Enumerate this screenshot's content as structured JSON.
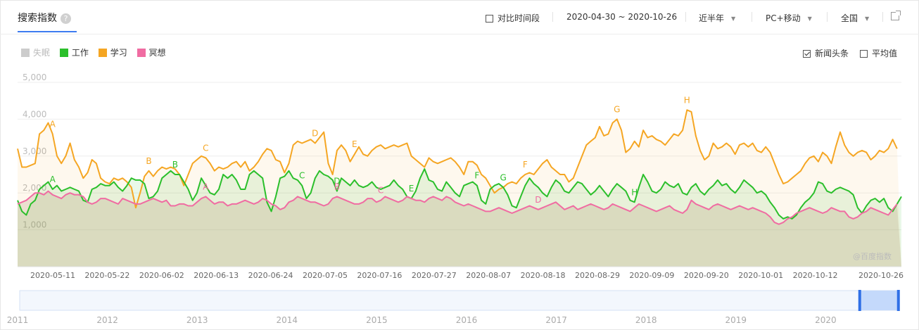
{
  "header": {
    "title": "搜索指数",
    "help_icon": "?",
    "compare_label": "对比时间段",
    "date_range": "2020-04-30 ~ 2020-10-26",
    "period": "近半年",
    "device": "PC+移动",
    "region": "全国",
    "share_icon": "share-icon"
  },
  "options": {
    "news_label": "新闻头条",
    "news_checked": true,
    "avg_label": "平均值",
    "avg_checked": false
  },
  "watermark": "@百度指数",
  "chart_data": {
    "type": "area",
    "y_ticks": [
      "5,000",
      "4,000",
      "3,000",
      "2,000",
      "1,000"
    ],
    "ylim": [
      0,
      5000
    ],
    "x_start": "2020-04-30",
    "x_end": "2020-10-26",
    "x_tick_labels": [
      "2020-05-11",
      "2020-05-22",
      "2020-06-02",
      "2020-06-13",
      "2020-06-24",
      "2020-07-05",
      "2020-07-16",
      "2020-07-27",
      "2020-08-07",
      "2020-08-18",
      "2020-08-29",
      "2020-09-09",
      "2020-09-20",
      "2020-10-01",
      "2020-10-12",
      "2020-10-26"
    ],
    "legend_position": "top-left",
    "grid": true,
    "series": [
      {
        "name": "失眠",
        "color": "#cccccc",
        "visible": false,
        "values": []
      },
      {
        "name": "工作",
        "color": "#2bbf2b",
        "visible": true,
        "values": [
          1800,
          1500,
          1400,
          1700,
          1800,
          2100,
          2200,
          2300,
          2100,
          2200,
          2050,
          2100,
          2150,
          2100,
          2050,
          1800,
          1750,
          2100,
          2150,
          2250,
          2200,
          2200,
          2300,
          2150,
          2050,
          2200,
          2400,
          2350,
          2350,
          2250,
          1850,
          1900,
          2050,
          2400,
          2500,
          2600,
          2500,
          2500,
          2300,
          2100,
          1800,
          2000,
          2400,
          2200,
          2000,
          1950,
          2100,
          2500,
          2400,
          2500,
          2350,
          2100,
          2100,
          2500,
          2600,
          2500,
          2400,
          1750,
          1500,
          1900,
          2400,
          2450,
          2600,
          2400,
          2350,
          2200,
          1850,
          2000,
          2400,
          2600,
          2500,
          2450,
          2350,
          2050,
          2400,
          2300,
          2200,
          2350,
          2200,
          2150,
          2200,
          2300,
          2150,
          2100,
          2150,
          2200,
          2350,
          2200,
          2100,
          1900,
          1850,
          2050,
          2400,
          2650,
          2350,
          2300,
          2100,
          2050,
          2300,
          2150,
          2000,
          1900,
          2200,
          2250,
          2300,
          2200,
          1800,
          1700,
          2100,
          2200,
          2250,
          2150,
          1950,
          1650,
          1600,
          1900,
          2200,
          2400,
          2250,
          2150,
          2000,
          1900,
          2150,
          2350,
          2250,
          2050,
          2000,
          2150,
          2300,
          2250,
          2100,
          1950,
          2050,
          2200,
          2050,
          1900,
          2100,
          2250,
          2150,
          2050,
          1800,
          1750,
          2150,
          2500,
          2300,
          2050,
          2000,
          2100,
          2300,
          2200,
          2150,
          2250,
          2000,
          1950,
          2150,
          2250,
          2050,
          1950,
          2100,
          2200,
          2350,
          2200,
          2250,
          2100,
          2000,
          2150,
          2350,
          2250,
          2150,
          2000,
          2050,
          1950,
          1750,
          1600,
          1400,
          1300,
          1350,
          1300,
          1400,
          1600,
          1750,
          1850,
          2000,
          2300,
          2250,
          2050,
          2000,
          2100,
          2150,
          2100,
          2050,
          1950,
          1600,
          1450,
          1650,
          1800,
          1850,
          1750,
          1850,
          1600,
          1500,
          1700,
          1900
        ]
      },
      {
        "name": "学习",
        "color": "#f5a623",
        "visible": true,
        "values": [
          3200,
          2700,
          2700,
          2750,
          2800,
          3600,
          3700,
          3900,
          3600,
          3000,
          2800,
          3000,
          3350,
          2900,
          2700,
          2400,
          2550,
          2900,
          2800,
          2400,
          2300,
          2250,
          2400,
          2350,
          2400,
          2300,
          2150,
          1600,
          2000,
          2450,
          2600,
          2450,
          2600,
          2700,
          2650,
          2700,
          2650,
          2500,
          2200,
          2500,
          2800,
          2900,
          3000,
          2950,
          2800,
          2600,
          2700,
          2650,
          2700,
          2800,
          2850,
          2700,
          2850,
          2600,
          2700,
          2850,
          3050,
          3200,
          3150,
          2900,
          2850,
          2550,
          2800,
          3300,
          3400,
          3350,
          3400,
          3450,
          3350,
          3500,
          3650,
          2800,
          2500,
          3150,
          3300,
          3150,
          2850,
          3050,
          3250,
          3050,
          3000,
          3150,
          3250,
          3300,
          3200,
          3250,
          3300,
          3250,
          3300,
          3350,
          3000,
          2900,
          2800,
          2700,
          2950,
          2850,
          2800,
          2850,
          2900,
          2950,
          2850,
          2700,
          2500,
          2850,
          2850,
          2750,
          2500,
          2400,
          2200,
          2000,
          2100,
          2150,
          2250,
          2300,
          2250,
          2400,
          2500,
          2550,
          2500,
          2650,
          2800,
          2900,
          2700,
          2600,
          2500,
          2500,
          2300,
          2400,
          2700,
          3000,
          3300,
          3400,
          3500,
          3800,
          3550,
          3600,
          3900,
          4000,
          3700,
          3100,
          3200,
          3400,
          3250,
          3700,
          3500,
          3550,
          3450,
          3400,
          3300,
          3450,
          3600,
          3550,
          3700,
          4250,
          4200,
          3550,
          3150,
          2900,
          3000,
          3350,
          3200,
          3250,
          3350,
          3250,
          3050,
          3300,
          3350,
          3250,
          3350,
          3150,
          3100,
          3250,
          3100,
          2800,
          2500,
          2250,
          2300,
          2400,
          2500,
          2600,
          2800,
          2950,
          3000,
          2850,
          3100,
          3000,
          2800,
          3250,
          3650,
          3300,
          3100,
          3000,
          3100,
          3150,
          3100,
          2900,
          3000,
          3150,
          3100,
          3200,
          3450,
          3200
        ]
      },
      {
        "name": "冥想",
        "color": "#f06ca2",
        "visible": true,
        "values": [
          1700,
          1750,
          1800,
          1900,
          2000,
          2000,
          1950,
          2050,
          1950,
          1900,
          1850,
          1950,
          2000,
          1950,
          1950,
          1900,
          1750,
          1700,
          1750,
          1850,
          1850,
          1800,
          1750,
          1700,
          1850,
          1800,
          1750,
          1700,
          1700,
          1750,
          1800,
          1850,
          1800,
          1750,
          1800,
          1650,
          1650,
          1700,
          1700,
          1650,
          1650,
          1750,
          1850,
          1900,
          1800,
          1700,
          1750,
          1750,
          1650,
          1700,
          1700,
          1750,
          1800,
          1750,
          1700,
          1750,
          1850,
          1800,
          1700,
          1650,
          1550,
          1600,
          1750,
          1800,
          1900,
          1850,
          1800,
          1750,
          1750,
          1700,
          1650,
          1700,
          1850,
          1900,
          1850,
          1800,
          1750,
          1700,
          1700,
          1750,
          1850,
          1850,
          1750,
          1800,
          1900,
          1850,
          1800,
          1750,
          1800,
          1900,
          1850,
          1800,
          1800,
          1750,
          1850,
          1900,
          1850,
          1800,
          1900,
          1850,
          1750,
          1700,
          1650,
          1700,
          1650,
          1600,
          1550,
          1500,
          1500,
          1550,
          1600,
          1550,
          1500,
          1450,
          1500,
          1550,
          1600,
          1650,
          1600,
          1550,
          1600,
          1650,
          1700,
          1750,
          1650,
          1550,
          1600,
          1650,
          1550,
          1600,
          1650,
          1700,
          1650,
          1600,
          1550,
          1600,
          1700,
          1650,
          1600,
          1550,
          1500,
          1600,
          1700,
          1650,
          1600,
          1550,
          1500,
          1550,
          1600,
          1650,
          1550,
          1500,
          1450,
          1550,
          1800,
          1700,
          1650,
          1600,
          1550,
          1650,
          1700,
          1650,
          1600,
          1550,
          1600,
          1650,
          1600,
          1550,
          1600,
          1550,
          1500,
          1450,
          1350,
          1200,
          1150,
          1200,
          1300,
          1350,
          1450,
          1500,
          1550,
          1600,
          1550,
          1500,
          1450,
          1500,
          1600,
          1550,
          1500,
          1500,
          1350,
          1300,
          1350,
          1450,
          1500,
          1600,
          1550,
          1500,
          1450,
          1400,
          1550,
          1700
        ]
      }
    ],
    "annotations": [
      {
        "series": "学习",
        "label": "A",
        "index": 8
      },
      {
        "series": "学习",
        "label": "B",
        "index": 30
      },
      {
        "series": "学习",
        "label": "C",
        "index": 43
      },
      {
        "series": "学习",
        "label": "D",
        "index": 68
      },
      {
        "series": "学习",
        "label": "E",
        "index": 77
      },
      {
        "series": "学习",
        "label": "F",
        "index": 116
      },
      {
        "series": "学习",
        "label": "G",
        "index": 137
      },
      {
        "series": "学习",
        "label": "H",
        "index": 153
      },
      {
        "series": "工作",
        "label": "A",
        "index": 8
      },
      {
        "series": "工作",
        "label": "B",
        "index": 36
      },
      {
        "series": "工作",
        "label": "C",
        "index": 65
      },
      {
        "series": "工作",
        "label": "D",
        "index": 73
      },
      {
        "series": "工作",
        "label": "E",
        "index": 90
      },
      {
        "series": "工作",
        "label": "F",
        "index": 105
      },
      {
        "series": "工作",
        "label": "G",
        "index": 111
      },
      {
        "series": "工作",
        "label": "H",
        "index": 141
      },
      {
        "series": "冥想",
        "label": "A",
        "index": 43
      },
      {
        "series": "冥想",
        "label": "B",
        "index": 73
      },
      {
        "series": "冥想",
        "label": "C",
        "index": 83
      },
      {
        "series": "冥想",
        "label": "D",
        "index": 119
      }
    ]
  },
  "navigator": {
    "year_labels": [
      "2011",
      "2012",
      "2013",
      "2014",
      "2015",
      "2016",
      "2017",
      "2018",
      "2019",
      "2020"
    ],
    "selection": [
      0.955,
      0.999
    ]
  }
}
